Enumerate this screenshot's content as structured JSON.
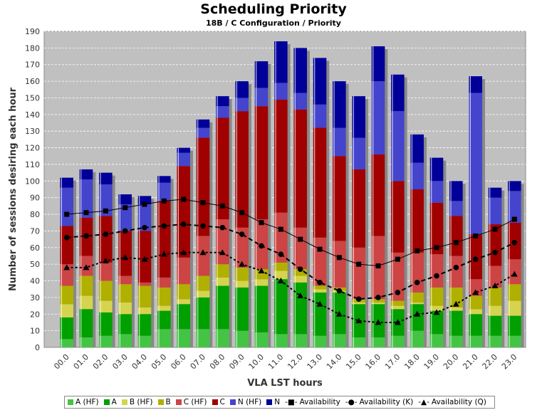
{
  "chart_data": {
    "type": "bar",
    "stacked": true,
    "title": "Scheduling Priority",
    "subtitle": "18B / C Configuration /  Priority",
    "xlabel": "VLA LST hours",
    "ylabel": "Number of sessions desiring each hour",
    "ylim": [
      0,
      190
    ],
    "ytick_step": 10,
    "grid": true,
    "legend_position": "bottom",
    "categories": [
      "00.0",
      "01.0",
      "02.0",
      "03.0",
      "04.0",
      "05.0",
      "06.0",
      "07.0",
      "08.0",
      "09.0",
      "10.0",
      "11.0",
      "12.0",
      "13.0",
      "14.0",
      "15.0",
      "16.0",
      "17.0",
      "18.0",
      "19.0",
      "20.0",
      "21.0",
      "22.0",
      "23.0"
    ],
    "series": [
      {
        "name": "A (HF)",
        "color": "#44c444",
        "values": [
          5,
          6,
          7,
          8,
          7,
          11,
          11,
          11,
          11,
          10,
          9,
          8,
          8,
          7,
          8,
          6,
          6,
          7,
          10,
          8,
          7,
          7,
          7,
          7
        ]
      },
      {
        "name": "A",
        "color": "#00a000",
        "values": [
          13,
          17,
          14,
          12,
          13,
          11,
          15,
          19,
          26,
          26,
          28,
          33,
          31,
          26,
          25,
          20,
          20,
          16,
          16,
          14,
          15,
          13,
          12,
          12
        ]
      },
      {
        "name": "B (HF)",
        "color": "#d4d450",
        "values": [
          8,
          8,
          7,
          7,
          4,
          3,
          3,
          4,
          5,
          4,
          4,
          5,
          4,
          2,
          1,
          1,
          1,
          2,
          1,
          3,
          2,
          3,
          6,
          9
        ]
      },
      {
        "name": "B",
        "color": "#b0b000",
        "values": [
          11,
          12,
          12,
          11,
          13,
          11,
          9,
          9,
          8,
          8,
          6,
          5,
          4,
          2,
          2,
          2,
          2,
          3,
          6,
          11,
          12,
          8,
          11,
          10
        ]
      },
      {
        "name": "C (HF)",
        "color": "#cc4444",
        "values": [
          13,
          12,
          11,
          5,
          2,
          6,
          16,
          24,
          27,
          24,
          30,
          30,
          25,
          29,
          28,
          31,
          38,
          29,
          24,
          20,
          19,
          10,
          13,
          15
        ]
      },
      {
        "name": "C",
        "color": "#a00000",
        "values": [
          23,
          23,
          28,
          27,
          31,
          46,
          55,
          59,
          61,
          70,
          68,
          68,
          71,
          66,
          51,
          47,
          49,
          43,
          38,
          31,
          24,
          27,
          25,
          22
        ]
      },
      {
        "name": "N (HF)",
        "color": "#4444cc",
        "values": [
          23,
          23,
          19,
          16,
          16,
          11,
          8,
          6,
          7,
          8,
          11,
          10,
          10,
          14,
          17,
          19,
          44,
          42,
          16,
          13,
          9,
          85,
          16,
          19
        ]
      },
      {
        "name": "N",
        "color": "#000099",
        "values": [
          6,
          6,
          7,
          6,
          5,
          4,
          3,
          5,
          6,
          10,
          16,
          25,
          27,
          28,
          28,
          25,
          21,
          22,
          17,
          14,
          12,
          10,
          6,
          6
        ]
      }
    ],
    "lines": [
      {
        "name": "Availability",
        "marker": "square",
        "dash": "solid",
        "values": [
          80,
          81,
          82,
          84,
          86,
          88,
          89,
          87,
          85,
          81,
          75,
          71,
          65,
          59,
          54,
          50,
          49,
          53,
          58,
          60,
          63,
          67,
          71,
          77
        ]
      },
      {
        "name": "Availability (K)",
        "marker": "circle",
        "dash": "dashed",
        "values": [
          66,
          67,
          68,
          70,
          72,
          73,
          74,
          73,
          72,
          68,
          61,
          56,
          47,
          39,
          34,
          29,
          30,
          33,
          39,
          43,
          48,
          53,
          57,
          63
        ]
      },
      {
        "name": "Availability (Q)",
        "marker": "triangle",
        "dash": "dotted",
        "values": [
          48,
          48,
          52,
          54,
          53,
          56,
          57,
          57,
          57,
          50,
          46,
          40,
          31,
          26,
          20,
          16,
          15,
          15,
          20,
          21,
          26,
          33,
          37,
          44
        ]
      }
    ]
  }
}
